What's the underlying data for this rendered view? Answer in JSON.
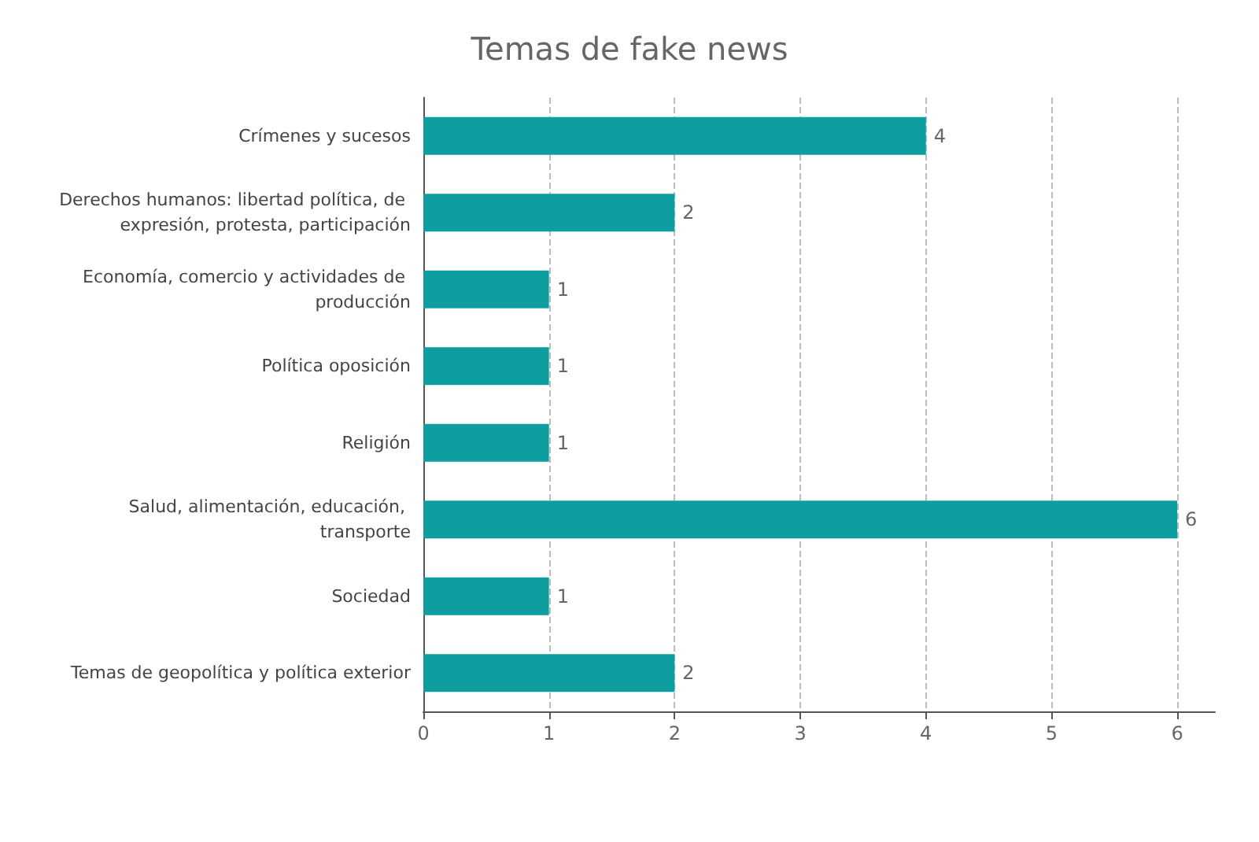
{
  "chart_data": {
    "type": "bar",
    "orientation": "horizontal",
    "title": "Temas de fake news",
    "categories": [
      "Crímenes y sucesos",
      "Derechos humanos: libertad política, de expresión, protesta, participación",
      "Economía, comercio y actividades de producción",
      "Política oposición",
      "Religión",
      "Salud, alimentación, educación, transporte",
      "Sociedad",
      "Temas de geopolítica y política exterior"
    ],
    "values": [
      4,
      2,
      1,
      1,
      1,
      6,
      1,
      2
    ],
    "color": "#0e9ea0",
    "xlim": [
      0,
      6.3
    ],
    "xticks": [
      0,
      1,
      2,
      3,
      4,
      5,
      6
    ],
    "grid": "x",
    "line_style": "dashed",
    "data_labels": true
  }
}
